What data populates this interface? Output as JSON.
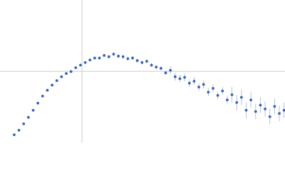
{
  "chart_data": {
    "type": "scatter",
    "xlim": [
      0,
      6.02
    ],
    "ylim": [
      0,
      2.21
    ],
    "reference_x": 1.732,
    "reference_y": 1.104,
    "color": "#3a62b8",
    "error_color": "#9fb3dc",
    "series": [
      {
        "x": [
          0.3,
          0.4,
          0.5,
          0.6,
          0.7,
          0.8,
          0.9,
          1.0,
          1.1,
          1.2,
          1.3,
          1.4,
          1.5,
          1.6,
          1.7,
          1.8,
          1.9,
          2.0,
          2.1,
          2.2,
          2.3,
          2.4,
          2.5,
          2.6,
          2.7,
          2.8,
          2.9,
          3.0,
          3.1,
          3.2,
          3.3,
          3.4,
          3.5,
          3.6,
          3.7,
          3.8,
          3.9,
          4.0,
          4.1,
          4.2,
          4.3,
          4.4,
          4.5,
          4.6,
          4.7,
          4.8,
          4.9,
          5.0,
          5.1,
          5.2,
          5.3,
          5.4,
          5.5,
          5.6,
          5.7,
          5.8,
          5.9,
          6.0
        ],
        "values": [
          0.12,
          0.19,
          0.29,
          0.39,
          0.5,
          0.61,
          0.72,
          0.81,
          0.89,
          0.96,
          1.02,
          1.07,
          1.1,
          1.16,
          1.2,
          1.24,
          1.28,
          1.31,
          1.31,
          1.35,
          1.33,
          1.37,
          1.34,
          1.33,
          1.3,
          1.31,
          1.27,
          1.24,
          1.26,
          1.2,
          1.17,
          1.15,
          1.08,
          1.12,
          1.02,
          0.99,
          1.01,
          0.92,
          0.95,
          0.86,
          0.9,
          0.78,
          0.84,
          0.73,
          0.8,
          0.66,
          0.74,
          0.62,
          0.7,
          0.5,
          0.66,
          0.48,
          0.58,
          0.52,
          0.4,
          0.56,
          0.45,
          0.5
        ],
        "errors": [
          0.01,
          0.01,
          0.01,
          0.01,
          0.01,
          0.01,
          0.01,
          0.01,
          0.01,
          0.01,
          0.01,
          0.01,
          0.01,
          0.01,
          0.01,
          0.01,
          0.01,
          0.01,
          0.01,
          0.01,
          0.03,
          0.03,
          0.03,
          0.03,
          0.03,
          0.03,
          0.03,
          0.03,
          0.03,
          0.03,
          0.03,
          0.03,
          0.03,
          0.06,
          0.06,
          0.06,
          0.06,
          0.06,
          0.06,
          0.06,
          0.06,
          0.06,
          0.06,
          0.06,
          0.06,
          0.06,
          0.12,
          0.12,
          0.12,
          0.12,
          0.12,
          0.12,
          0.12,
          0.12,
          0.12,
          0.12,
          0.12,
          0.12
        ]
      }
    ]
  }
}
